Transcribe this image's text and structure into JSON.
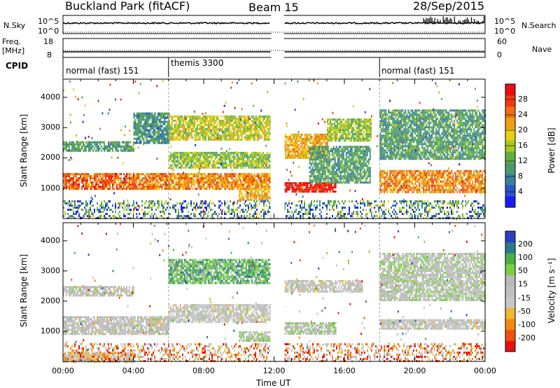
{
  "header": {
    "station": "Buckland Park (fitACF)",
    "beam": "Beam 15",
    "date": "28/Sep/2015"
  },
  "side_labels": {
    "nsky": "N.Sky",
    "nsky_top": "10^5",
    "nsky_bottom": "10^0",
    "nsearch": "N.Search",
    "nsearch_top": "10^5",
    "nsearch_bottom": "10^0",
    "freq_label_1": "Freq.",
    "freq_label_2": "[MHz]",
    "freq_top": "18",
    "freq_bottom": "8",
    "nave": "Nave",
    "nave_top": "60",
    "nave_bottom": "0",
    "cpid": "CPID"
  },
  "cpid_segments": [
    {
      "label": "normal (fast) 151",
      "start_h": 0
    },
    {
      "label": "themis 3300",
      "start_h": 6
    },
    {
      "label": "normal (fast) 151",
      "start_h": 18
    }
  ],
  "colors": {
    "power": [
      "#1a1aff",
      "#2a55c8",
      "#3a7fa0",
      "#4a9a70",
      "#60b040",
      "#a8c820",
      "#e8d010",
      "#f0a010",
      "#f07010",
      "#f03a10",
      "#e81010"
    ],
    "velocity": [
      "#e81010",
      "#f05010",
      "#f08a10",
      "#f0b830",
      "#c8c8c8",
      "#c0c0c0",
      "#b8b8b8",
      "#7cd040",
      "#48b048",
      "#2a7a8c",
      "#2a40c0"
    ],
    "ground": "#c0c0c0"
  },
  "chart_data": [
    {
      "type": "heatmap",
      "name": "power",
      "ylabel": "Slant Range [km]",
      "xlabel": "Time UT",
      "xlim": [
        0,
        24
      ],
      "ylim": [
        0,
        4600
      ],
      "x_ticks": [
        "00:00",
        "04:00",
        "08:00",
        "12:00",
        "16:00",
        "20:00",
        "00:00"
      ],
      "y_ticks": [
        1000,
        2000,
        3000,
        4000
      ],
      "colorbar": {
        "label": "Power [dB]",
        "ticks": [
          4,
          8,
          12,
          16,
          20,
          24,
          28
        ],
        "range": [
          0,
          30
        ]
      },
      "data_gap_h": [
        11.8,
        12.6
      ],
      "bands": [
        {
          "t0": 0,
          "t1": 4,
          "r0": 2250,
          "r1": 2550,
          "v": 10
        },
        {
          "t0": 0,
          "t1": 4,
          "r0": 1000,
          "r1": 1500,
          "v": 24
        },
        {
          "t0": 4,
          "t1": 6,
          "r0": 2500,
          "r1": 3500,
          "v": 9
        },
        {
          "t0": 4,
          "t1": 11.8,
          "r0": 950,
          "r1": 1500,
          "v": 22
        },
        {
          "t0": 6,
          "t1": 11.8,
          "r0": 2600,
          "r1": 3400,
          "v": 16
        },
        {
          "t0": 6,
          "t1": 11.8,
          "r0": 1700,
          "r1": 2200,
          "v": 14
        },
        {
          "t0": 10,
          "t1": 11.8,
          "r0": 600,
          "r1": 1000,
          "v": 20
        },
        {
          "t0": 12.6,
          "t1": 15,
          "r0": 2000,
          "r1": 2800,
          "v": 20
        },
        {
          "t0": 12.6,
          "t1": 15.5,
          "r0": 900,
          "r1": 1200,
          "v": 28
        },
        {
          "t0": 14,
          "t1": 17.5,
          "r0": 1200,
          "r1": 2400,
          "v": 10
        },
        {
          "t0": 15,
          "t1": 17.5,
          "r0": 2600,
          "r1": 3300,
          "v": 14
        },
        {
          "t0": 18,
          "t1": 24,
          "r0": 2000,
          "r1": 3600,
          "v": 10
        },
        {
          "t0": 18,
          "t1": 24,
          "r0": 900,
          "r1": 1600,
          "v": 22
        }
      ]
    },
    {
      "type": "heatmap",
      "name": "velocity",
      "ylabel": "Slant Range [km]",
      "xlabel": "Time UT",
      "xlim": [
        0,
        24
      ],
      "ylim": [
        0,
        4600
      ],
      "x_ticks": [
        "00:00",
        "04:00",
        "08:00",
        "12:00",
        "16:00",
        "20:00",
        "00:00"
      ],
      "y_ticks": [
        1000,
        2000,
        3000,
        4000
      ],
      "colorbar": {
        "label": "Velocity [m s⁻¹]",
        "ticks": [
          -200,
          -100,
          -50,
          -15,
          15,
          50,
          100,
          200
        ]
      },
      "data_gap_h": [
        11.8,
        12.6
      ],
      "bands": [
        {
          "t0": 0,
          "t1": 4,
          "r0": 2200,
          "r1": 2500,
          "v": 0
        },
        {
          "t0": 0,
          "t1": 6,
          "r0": 900,
          "r1": 1500,
          "v": 0
        },
        {
          "t0": 6,
          "t1": 11.8,
          "r0": 2600,
          "r1": 3400,
          "v": 120
        },
        {
          "t0": 6,
          "t1": 11.8,
          "r0": 1300,
          "r1": 1900,
          "v": 0
        },
        {
          "t0": 10,
          "t1": 11.8,
          "r0": 700,
          "r1": 1000,
          "v": 40
        },
        {
          "t0": 12.6,
          "t1": 15.5,
          "r0": 900,
          "r1": 1300,
          "v": 40
        },
        {
          "t0": 12.6,
          "t1": 17,
          "r0": 2300,
          "r1": 2700,
          "v": 0
        },
        {
          "t0": 18,
          "t1": 24,
          "r0": 2000,
          "r1": 3600,
          "v": 30
        },
        {
          "t0": 18,
          "t1": 24,
          "r0": 1100,
          "r1": 1400,
          "v": 0
        },
        {
          "t0": 0,
          "t1": 4,
          "r0": 0,
          "r1": 300,
          "v": -60
        }
      ]
    }
  ]
}
